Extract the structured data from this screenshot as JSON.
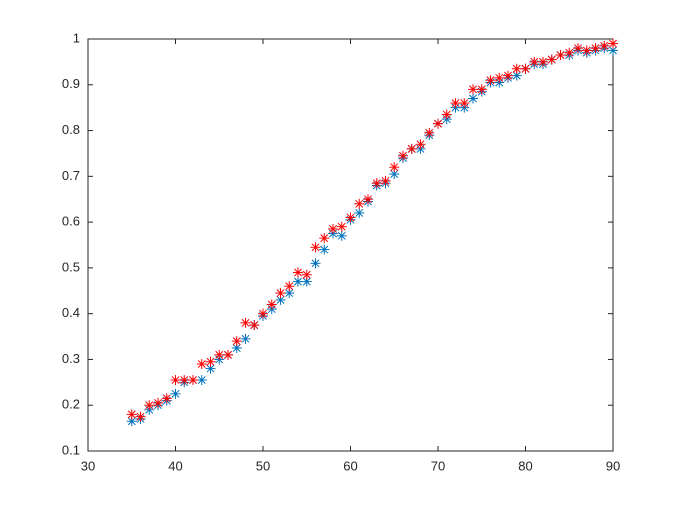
{
  "chart_data": {
    "type": "scatter",
    "x": [
      35,
      36,
      37,
      38,
      39,
      40,
      41,
      42,
      43,
      44,
      45,
      46,
      47,
      48,
      49,
      50,
      51,
      52,
      53,
      54,
      55,
      56,
      57,
      58,
      59,
      60,
      61,
      62,
      63,
      64,
      65,
      66,
      67,
      68,
      69,
      70,
      71,
      72,
      73,
      74,
      75,
      76,
      77,
      78,
      79,
      80,
      81,
      82,
      83,
      84,
      85,
      86,
      87,
      88,
      89,
      90
    ],
    "series": [
      {
        "color": "#0072bd",
        "values": [
          0.165,
          0.17,
          0.19,
          0.2,
          0.21,
          0.225,
          0.25,
          0.255,
          0.255,
          0.28,
          0.3,
          0.31,
          0.325,
          0.345,
          0.375,
          0.395,
          0.41,
          0.43,
          0.445,
          0.47,
          0.47,
          0.51,
          0.54,
          0.575,
          0.57,
          0.605,
          0.62,
          0.645,
          0.68,
          0.685,
          0.705,
          0.74,
          0.76,
          0.76,
          0.79,
          0.815,
          0.825,
          0.85,
          0.85,
          0.87,
          0.885,
          0.905,
          0.905,
          0.915,
          0.92,
          0.935,
          0.945,
          0.945,
          0.955,
          0.965,
          0.965,
          0.975,
          0.97,
          0.975,
          0.98,
          0.975
        ]
      },
      {
        "color": "#ff0000",
        "values": [
          0.18,
          0.175,
          0.2,
          0.205,
          0.215,
          0.255,
          0.255,
          0.255,
          0.29,
          0.295,
          0.31,
          0.31,
          0.34,
          0.38,
          0.375,
          0.4,
          0.42,
          0.445,
          0.46,
          0.49,
          0.485,
          0.545,
          0.565,
          0.585,
          0.59,
          0.61,
          0.64,
          0.65,
          0.685,
          0.69,
          0.72,
          0.745,
          0.76,
          0.77,
          0.795,
          0.815,
          0.835,
          0.86,
          0.86,
          0.89,
          0.89,
          0.91,
          0.915,
          0.92,
          0.935,
          0.935,
          0.95,
          0.95,
          0.955,
          0.965,
          0.97,
          0.98,
          0.975,
          0.98,
          0.985,
          0.99
        ]
      }
    ],
    "xlim": [
      30,
      90
    ],
    "xticks": [
      30,
      40,
      50,
      60,
      70,
      80,
      90
    ],
    "ylim": [
      0.1,
      1
    ],
    "yticks": [
      0.1,
      0.2,
      0.3,
      0.4,
      0.5,
      0.6,
      0.7,
      0.8,
      0.9,
      1
    ],
    "grid": false
  }
}
